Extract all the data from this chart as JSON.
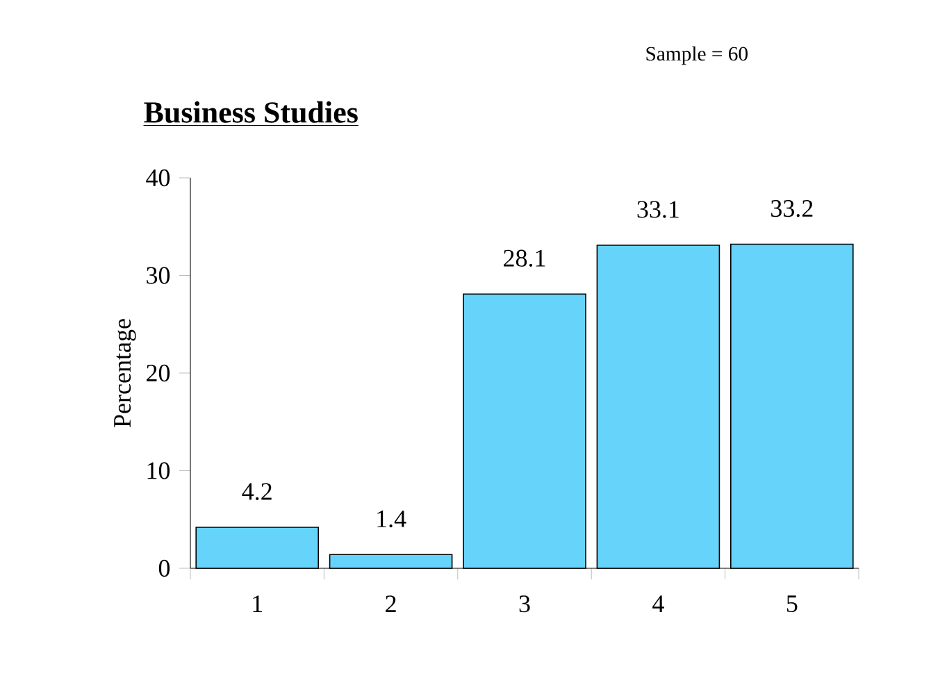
{
  "chart_data": {
    "type": "bar",
    "title": "Business Studies",
    "ylabel": "Percentage",
    "annotations": [
      "Sample = 60"
    ],
    "categories": [
      "1",
      "2",
      "3",
      "4",
      "5"
    ],
    "values": [
      4.2,
      1.4,
      28.1,
      33.1,
      33.2
    ],
    "color": "#66d4fa",
    "ylim": [
      0,
      40
    ],
    "yticks": [
      0,
      10,
      20,
      30,
      40
    ],
    "data_labels": true,
    "grid": false
  }
}
